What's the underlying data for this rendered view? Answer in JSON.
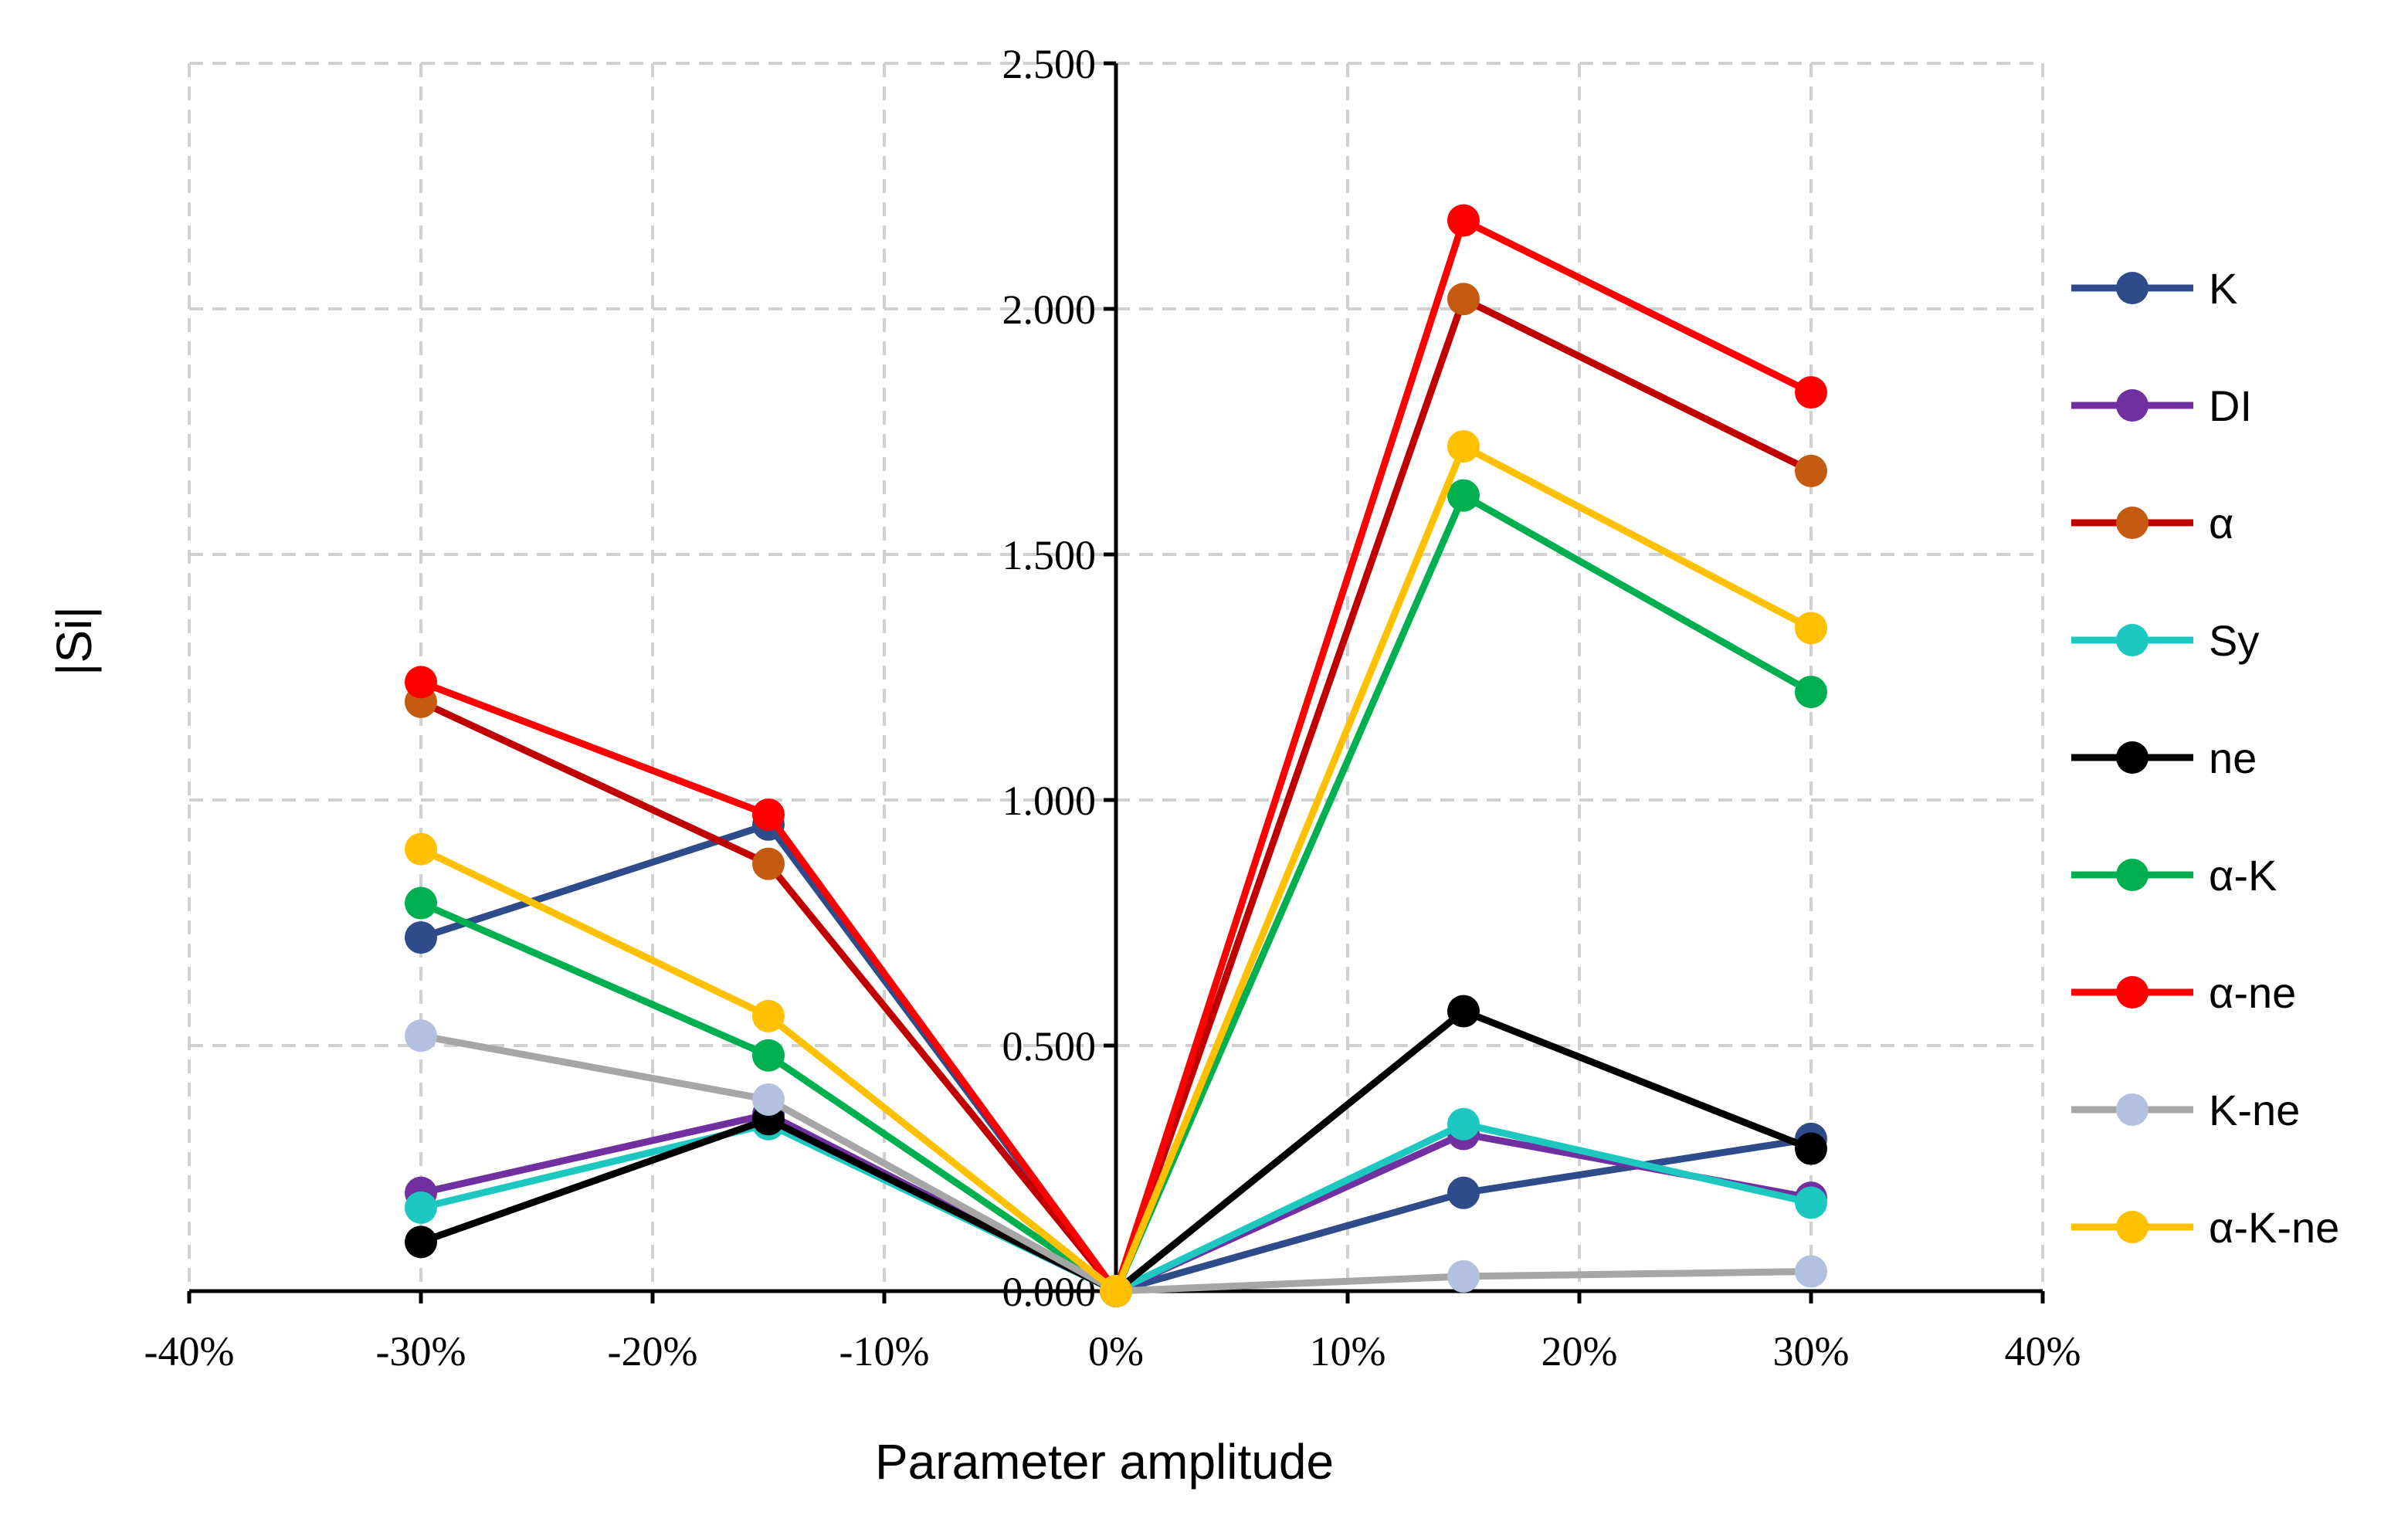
{
  "chart_data": {
    "type": "line",
    "title": "",
    "xlabel": "Parameter amplitude",
    "ylabel": "|Si|",
    "xlim": [
      -40,
      40
    ],
    "ylim": [
      0,
      2.5
    ],
    "x_ticks": [
      "-40%",
      "-30%",
      "-20%",
      "-10%",
      "0%",
      "10%",
      "20%",
      "30%",
      "40%"
    ],
    "y_ticks": [
      "0.000",
      "0.500",
      "1.000",
      "1.500",
      "2.000",
      "2.500"
    ],
    "grid": true,
    "legend_position": "right",
    "x": [
      -30,
      -15,
      0,
      15,
      30
    ],
    "series": [
      {
        "name": "K",
        "color": "#2f4b8a",
        "values": [
          0.72,
          0.95,
          0.0,
          0.2,
          0.31
        ]
      },
      {
        "name": "DI",
        "color": "#7030a0",
        "values": [
          0.2,
          0.36,
          0.0,
          0.32,
          0.19
        ]
      },
      {
        "name": "α",
        "color": "#c00000",
        "marker_color": "#c55a11",
        "values": [
          1.2,
          0.87,
          0.0,
          2.02,
          1.67
        ]
      },
      {
        "name": "Sy",
        "color": "#1cc8c0",
        "values": [
          0.17,
          0.34,
          0.0,
          0.34,
          0.18
        ]
      },
      {
        "name": "ne",
        "color": "#000000",
        "values": [
          0.1,
          0.35,
          0.0,
          0.57,
          0.29
        ]
      },
      {
        "name": "α-K",
        "color": "#00b050",
        "values": [
          0.79,
          0.48,
          0.0,
          1.62,
          1.22
        ]
      },
      {
        "name": "α-ne",
        "color": "#ff0000",
        "values": [
          1.24,
          0.97,
          0.0,
          2.18,
          1.83
        ]
      },
      {
        "name": "K-ne",
        "color": "#a6a6a6",
        "marker_color": "#b4c0e0",
        "values": [
          0.52,
          0.39,
          0.0,
          0.03,
          0.04
        ]
      },
      {
        "name": "α-K-ne",
        "color": "#ffc000",
        "values": [
          0.9,
          0.56,
          0.0,
          1.72,
          1.35
        ]
      }
    ]
  }
}
